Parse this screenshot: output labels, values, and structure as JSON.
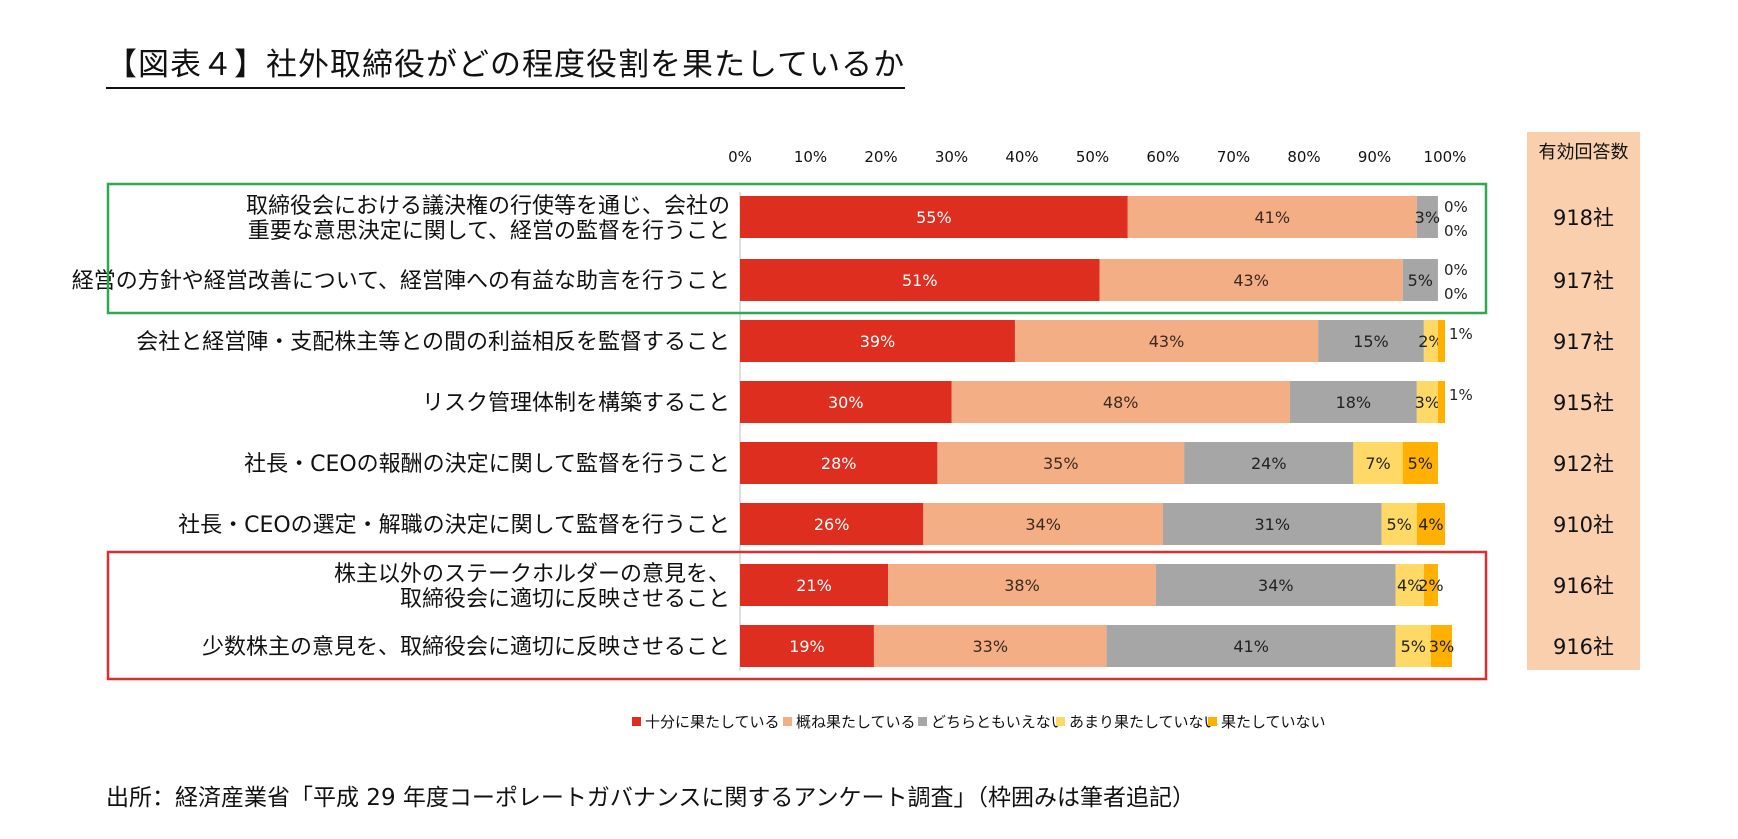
{
  "title": "【図表４】社外取締役がどの程度役割を果たしているか",
  "source": "出所：経済産業省「平成 29 年度コーポレートガバナンスに関するアンケート調査」（枠囲みは筆者追記）",
  "colors": {
    "series": [
      "#dd2e1f",
      "#f4ae85",
      "#a6a6a6",
      "#ffd966",
      "#ffb000"
    ],
    "answers_bg": "#f9cfad",
    "green_box": "#2fa84f",
    "red_box": "#dd2e2e"
  },
  "chart_data": {
    "type": "bar",
    "orientation": "horizontal",
    "stacked": true,
    "xlim": [
      0,
      100
    ],
    "x_ticks": [
      "0%",
      "10%",
      "20%",
      "30%",
      "40%",
      "50%",
      "60%",
      "70%",
      "80%",
      "90%",
      "100%"
    ],
    "answers_header": "有効回答数",
    "grid": false,
    "legend_position": "bottom",
    "categories": [
      [
        "取締役会における議決権の行使等を通じ、会社の",
        "重要な意思決定に関して、経営の監督を行うこと"
      ],
      [
        "経営の方針や経営改善について、経営陣への有益な助言を行うこと"
      ],
      [
        "会社と経営陣・支配株主等との間の利益相反を監督すること"
      ],
      [
        "リスク管理体制を構築すること"
      ],
      [
        "社長・CEOの報酬の決定に関して監督を行うこと"
      ],
      [
        "社長・CEOの選定・解職の決定に関して監督を行うこと"
      ],
      [
        "株主以外のステークホルダーの意見を、",
        "取締役会に適切に反映させること"
      ],
      [
        "少数株主の意見を、取締役会に適切に反映させること"
      ]
    ],
    "answers": [
      "918社",
      "917社",
      "917社",
      "915社",
      "912社",
      "910社",
      "916社",
      "916社"
    ],
    "series": [
      {
        "name": "十分に果たしている",
        "values": [
          55,
          51,
          39,
          30,
          28,
          26,
          21,
          19
        ]
      },
      {
        "name": "概ね果たしている",
        "values": [
          41,
          43,
          43,
          48,
          35,
          34,
          38,
          33
        ]
      },
      {
        "name": "どちらともいえない",
        "values": [
          3,
          5,
          15,
          18,
          24,
          31,
          34,
          41
        ]
      },
      {
        "name": "あまり果たしていない",
        "values": [
          0,
          0,
          2,
          3,
          7,
          5,
          4,
          5
        ]
      },
      {
        "name": "果たしていない",
        "values": [
          0,
          0,
          1,
          1,
          5,
          4,
          2,
          3
        ]
      }
    ],
    "highlight_groups": [
      {
        "color": "green",
        "rows": [
          0,
          1
        ]
      },
      {
        "color": "red",
        "rows": [
          6,
          7
        ]
      }
    ]
  }
}
